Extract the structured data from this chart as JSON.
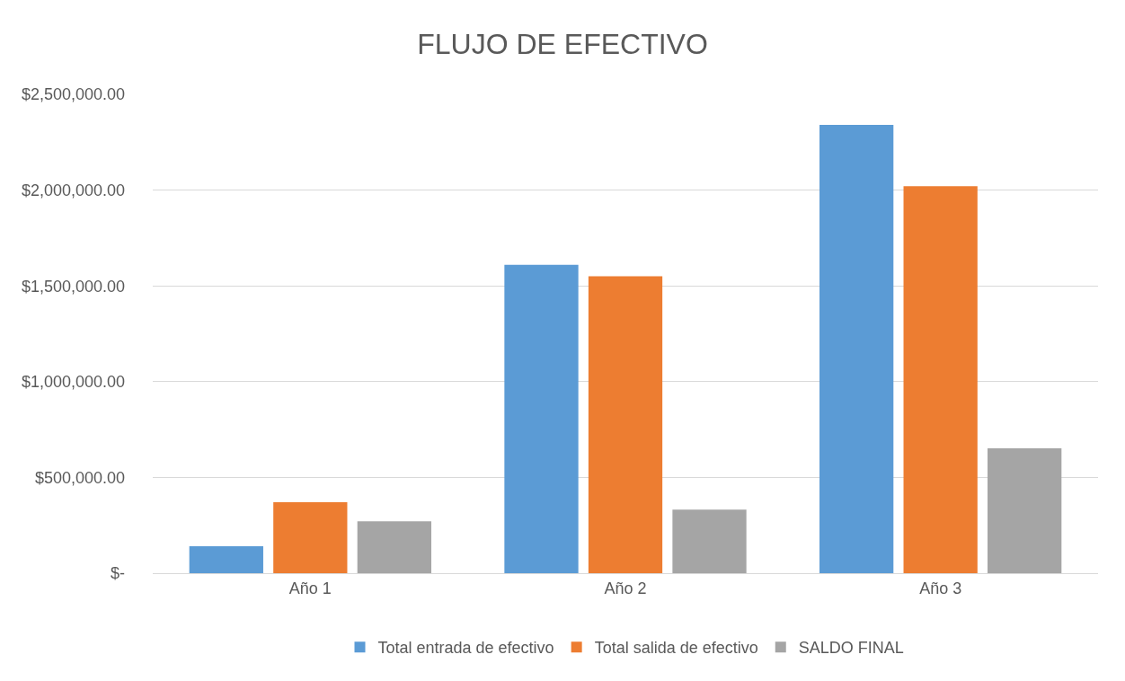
{
  "chart_data": {
    "type": "bar",
    "title": "FLUJO DE EFECTIVO",
    "categories": [
      "Año 1",
      "Año 2",
      "Año 3"
    ],
    "series": [
      {
        "name": "Total entrada de efectivo",
        "color": "#5b9bd5",
        "values": [
          141000,
          1610000,
          2340000
        ]
      },
      {
        "name": "Total salida de efectivo",
        "color": "#ed7d31",
        "values": [
          370000,
          1550000,
          2020000
        ]
      },
      {
        "name": "SALDO FINAL",
        "color": "#a5a5a5",
        "values": [
          271000,
          332000,
          652000
        ]
      }
    ],
    "ylim": [
      0,
      2500000
    ],
    "yticks": [
      {
        "value": 0,
        "label": "$-"
      },
      {
        "value": 500000,
        "label": "$500,000.00"
      },
      {
        "value": 1000000,
        "label": "$1,000,000.00"
      },
      {
        "value": 1500000,
        "label": "$1,500,000.00"
      },
      {
        "value": 2000000,
        "label": "$2,000,000.00"
      },
      {
        "value": 2500000,
        "label": "$2,500,000.00"
      }
    ],
    "grid": "y",
    "legend": "bottom"
  }
}
